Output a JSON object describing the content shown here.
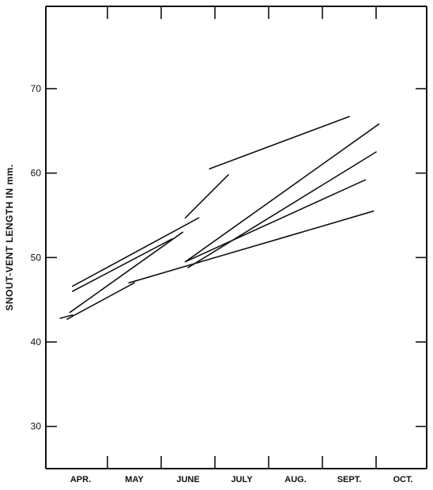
{
  "chart_data": {
    "type": "line",
    "title": "",
    "xlabel": "",
    "ylabel": "SNOUT-VENT LENGTH IN mm.",
    "ylim": [
      25,
      80
    ],
    "yticks": [
      30,
      40,
      50,
      60,
      70
    ],
    "xlim": [
      0,
      7
    ],
    "xtick_positions": [
      1,
      2,
      3,
      4,
      5,
      6
    ],
    "xtick_labels_text": [
      "APR.",
      "MAY",
      "JUNE",
      "JULY",
      "AUG.",
      "SEPT.",
      "OCT."
    ],
    "xtick_label_positions": [
      0.5,
      1.5,
      2.5,
      3.5,
      4.5,
      5.5,
      6.5
    ],
    "grid": false,
    "x_units": "months from start of April",
    "series": [
      {
        "x": [
          0.12,
          0.35
        ],
        "y": [
          42.8,
          43.2
        ]
      },
      {
        "x": [
          0.25,
          1.5
        ],
        "y": [
          42.7,
          47.0
        ]
      },
      {
        "x": [
          0.3,
          2.4
        ],
        "y": [
          43.5,
          53.0
        ]
      },
      {
        "x": [
          0.35,
          2.2
        ],
        "y": [
          46.0,
          52.2
        ]
      },
      {
        "x": [
          0.35,
          2.7
        ],
        "y": [
          46.6,
          54.7
        ]
      },
      {
        "x": [
          1.4,
          5.95
        ],
        "y": [
          47.0,
          55.5
        ]
      },
      {
        "x": [
          2.45,
          6.05
        ],
        "y": [
          49.5,
          65.8
        ]
      },
      {
        "x": [
          2.45,
          5.8
        ],
        "y": [
          49.5,
          59.2
        ]
      },
      {
        "x": [
          2.5,
          6.0
        ],
        "y": [
          48.8,
          62.5
        ]
      },
      {
        "x": [
          2.45,
          3.25
        ],
        "y": [
          54.7,
          59.8
        ]
      },
      {
        "x": [
          2.9,
          5.5
        ],
        "y": [
          60.5,
          66.7
        ]
      }
    ]
  }
}
